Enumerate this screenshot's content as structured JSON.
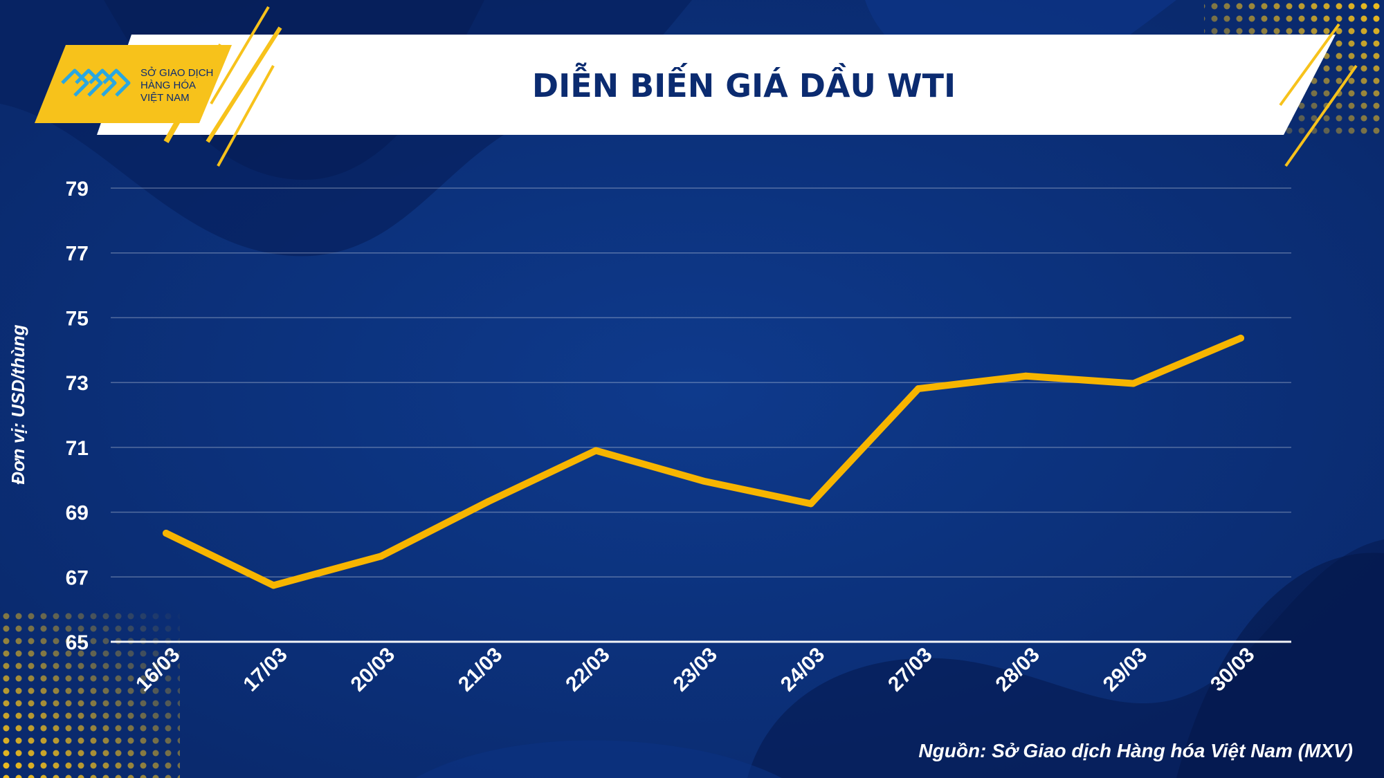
{
  "header": {
    "logo_line1": "SỞ GIAO DỊCH",
    "logo_line2": "HÀNG HÓA",
    "logo_line3": "VIỆT NAM",
    "title": "DIỄN BIẾN GIÁ DẦU WTI"
  },
  "footer": {
    "source": "Nguồn: Sở Giao dịch Hàng hóa Việt Nam (MXV)"
  },
  "colors": {
    "background": "#0a2a6e",
    "line": "#f7b500",
    "accent_yellow": "#f7c21b",
    "text": "#ffffff"
  },
  "chart_data": {
    "type": "line",
    "title": "DIỄN BIẾN GIÁ DẦU WTI",
    "xlabel": "",
    "ylabel": "Đơn vị: USD/thùng",
    "categories": [
      "16/03",
      "17/03",
      "20/03",
      "21/03",
      "22/03",
      "23/03",
      "24/03",
      "27/03",
      "28/03",
      "29/03",
      "30/03"
    ],
    "series": [
      {
        "values": [
          68.35,
          66.74,
          67.64,
          69.33,
          70.9,
          69.96,
          69.26,
          72.81,
          73.2,
          72.97,
          74.37
        ]
      }
    ],
    "yticks": [
      65,
      67,
      69,
      71,
      73,
      75,
      77,
      79
    ],
    "ylim": [
      65,
      79
    ],
    "grid": true,
    "legend": "none"
  }
}
